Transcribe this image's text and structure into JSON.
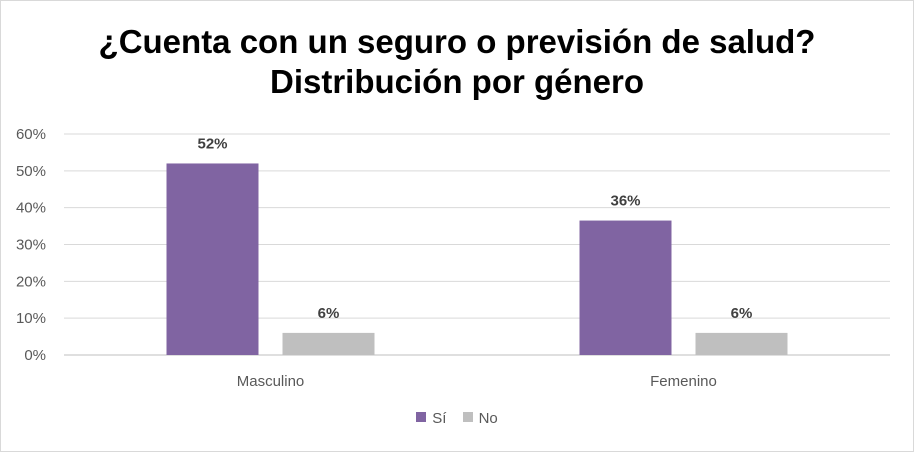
{
  "chart_data": {
    "type": "bar",
    "title_line1": "¿Cuenta con un seguro o previsión de salud?",
    "title_line2": "Distribución por género",
    "categories": [
      "Masculino",
      "Femenino"
    ],
    "series": [
      {
        "name": "Sí",
        "values": [
          52,
          36.5
        ],
        "labels": [
          "52%",
          "36%"
        ],
        "color": "#8064a2"
      },
      {
        "name": "No",
        "values": [
          6,
          6
        ],
        "labels": [
          "6%",
          "6%"
        ],
        "color": "#bfbfbf"
      }
    ],
    "yticks": [
      "0%",
      "10%",
      "20%",
      "30%",
      "40%",
      "50%",
      "60%"
    ],
    "ylim": [
      0,
      60
    ],
    "grid": true,
    "legend_position": "bottom"
  }
}
